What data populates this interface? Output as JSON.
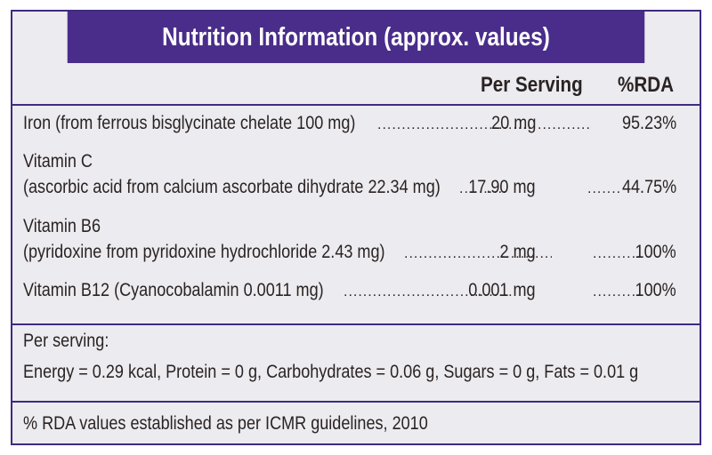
{
  "header": {
    "title": "Nutrition Information (approx. values)"
  },
  "columns": {
    "per_serving": "Per Serving",
    "rda": "%RDA"
  },
  "nutrients": [
    {
      "name_line1": "Iron (from ferrous bisglycinate chelate 100 mg)",
      "name_line2": "",
      "amount": "20 mg",
      "rda": "95.23%"
    },
    {
      "name_line1": "Vitamin C",
      "name_line2": "(ascorbic acid from calcium ascorbate dihydrate 22.34 mg)",
      "amount": "17.90 mg",
      "rda": "44.75%"
    },
    {
      "name_line1": "Vitamin B6",
      "name_line2": "(pyridoxine from pyridoxine hydrochloride 2.43 mg)",
      "amount": "2 mg",
      "rda": "100%"
    },
    {
      "name_line1": "Vitamin B12 (Cyanocobalamin 0.0011 mg)",
      "name_line2": "",
      "amount": "0.001 mg",
      "rda": "100%"
    }
  ],
  "per_serving_section": {
    "label": "Per serving:",
    "values": "Energy = 0.29 kcal, Protein = 0 g, Carbohydrates = 0.06 g, Sugars = 0 g, Fats = 0.01 g"
  },
  "footnote": "% RDA values established as per ICMR guidelines, 2010",
  "colors": {
    "header_bg": "#4a2d8a",
    "panel_bg": "#ecebef",
    "border": "#3f2a82",
    "text": "#2a2323"
  }
}
